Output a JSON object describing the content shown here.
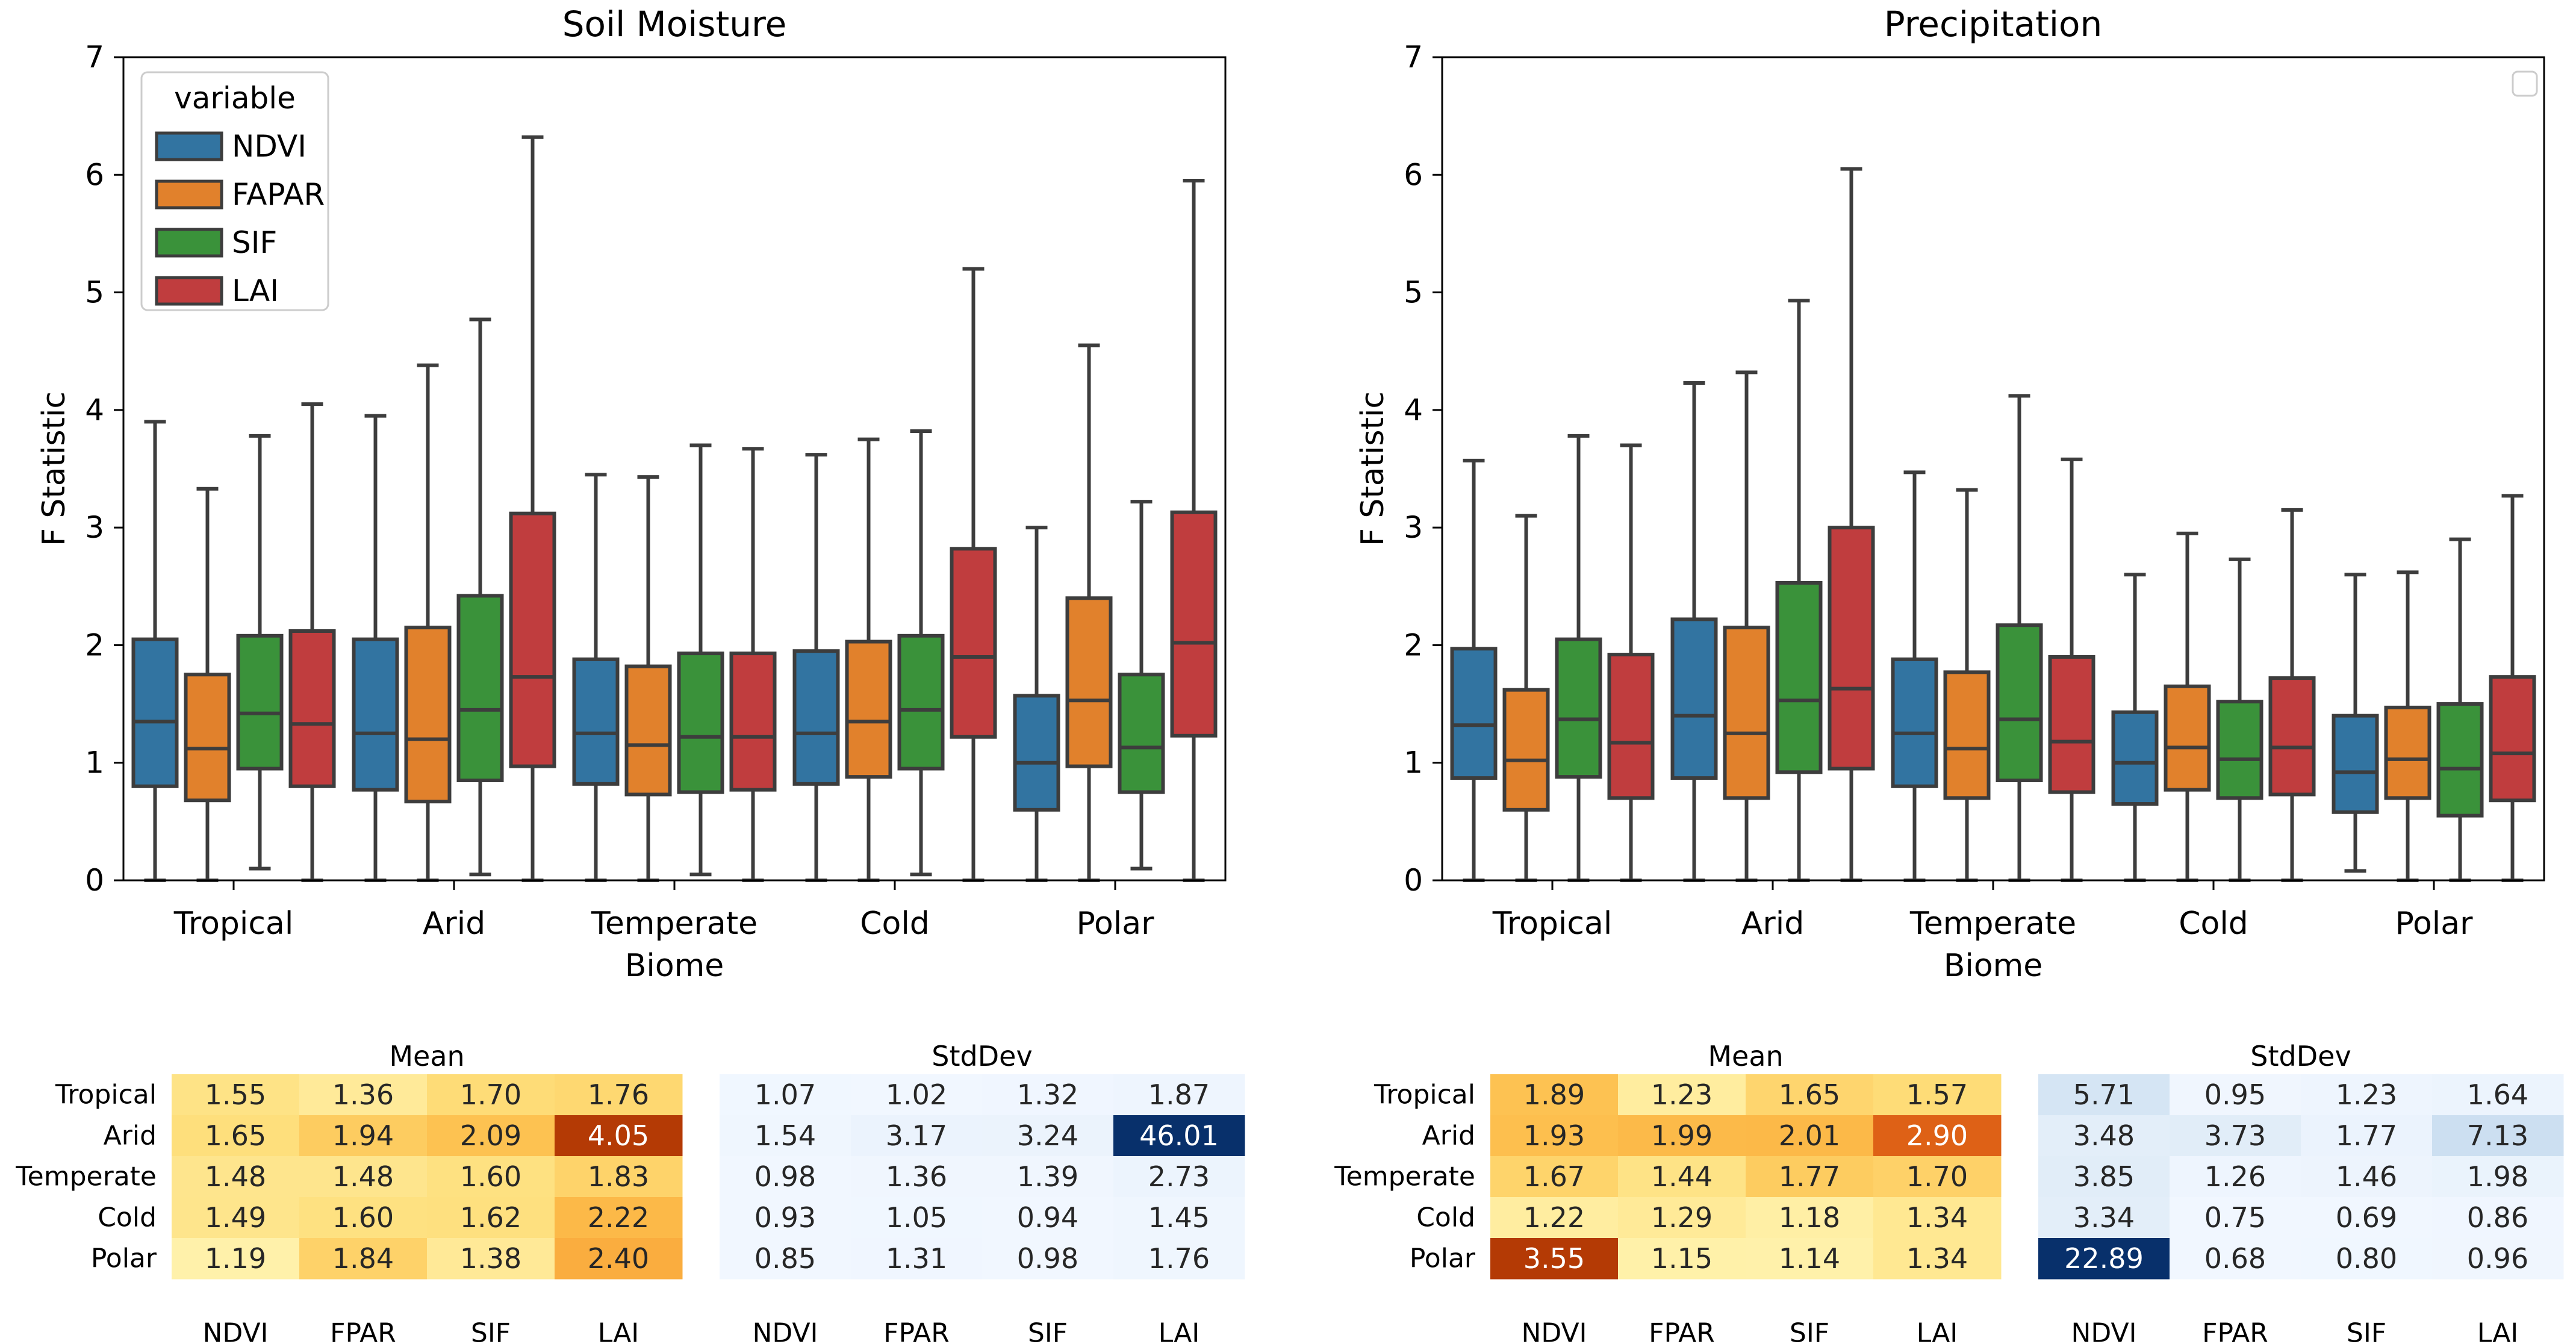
{
  "colors": {
    "NDVI": "#3274a1",
    "FAPAR": "#e1812c",
    "SIF": "#3a923a",
    "LAI": "#c03d3e",
    "line": "#3d3d3d"
  },
  "chart_data": [
    {
      "type": "box",
      "id": "soil",
      "title": "Soil Moisture",
      "xlabel": "Biome",
      "ylabel": "F Statistic",
      "ylim": [
        0,
        7
      ],
      "yticks": [
        "0",
        "1",
        "2",
        "3",
        "4",
        "5",
        "6",
        "7"
      ],
      "categories": [
        "Tropical",
        "Arid",
        "Temperate",
        "Cold",
        "Polar"
      ],
      "legend": {
        "title": "variable",
        "entries": [
          "NDVI",
          "FAPAR",
          "SIF",
          "LAI"
        ],
        "position": "upper-left"
      },
      "series": [
        {
          "name": "NDVI",
          "boxes": [
            {
              "min": 0,
              "q1": 0.8,
              "median": 1.35,
              "q3": 2.05,
              "max": 3.9
            },
            {
              "min": 0,
              "q1": 0.77,
              "median": 1.25,
              "q3": 2.05,
              "max": 3.95
            },
            {
              "min": 0,
              "q1": 0.82,
              "median": 1.25,
              "q3": 1.88,
              "max": 3.45
            },
            {
              "min": 0,
              "q1": 0.82,
              "median": 1.25,
              "q3": 1.95,
              "max": 3.62
            },
            {
              "min": 0,
              "q1": 0.6,
              "median": 1.0,
              "q3": 1.57,
              "max": 3.0
            }
          ]
        },
        {
          "name": "FAPAR",
          "boxes": [
            {
              "min": 0,
              "q1": 0.68,
              "median": 1.12,
              "q3": 1.75,
              "max": 3.33
            },
            {
              "min": 0,
              "q1": 0.67,
              "median": 1.2,
              "q3": 2.15,
              "max": 4.38
            },
            {
              "min": 0,
              "q1": 0.73,
              "median": 1.15,
              "q3": 1.82,
              "max": 3.43
            },
            {
              "min": 0,
              "q1": 0.88,
              "median": 1.35,
              "q3": 2.03,
              "max": 3.75
            },
            {
              "min": 0,
              "q1": 0.97,
              "median": 1.53,
              "q3": 2.4,
              "max": 4.55
            }
          ]
        },
        {
          "name": "SIF",
          "boxes": [
            {
              "min": 0.1,
              "q1": 0.95,
              "median": 1.42,
              "q3": 2.08,
              "max": 3.78
            },
            {
              "min": 0.05,
              "q1": 0.85,
              "median": 1.45,
              "q3": 2.42,
              "max": 4.77
            },
            {
              "min": 0.05,
              "q1": 0.75,
              "median": 1.22,
              "q3": 1.93,
              "max": 3.7
            },
            {
              "min": 0.05,
              "q1": 0.95,
              "median": 1.45,
              "q3": 2.08,
              "max": 3.82
            },
            {
              "min": 0.1,
              "q1": 0.75,
              "median": 1.13,
              "q3": 1.75,
              "max": 3.22
            }
          ]
        },
        {
          "name": "LAI",
          "boxes": [
            {
              "min": 0,
              "q1": 0.8,
              "median": 1.33,
              "q3": 2.12,
              "max": 4.05
            },
            {
              "min": 0,
              "q1": 0.97,
              "median": 1.73,
              "q3": 3.12,
              "max": 6.32
            },
            {
              "min": 0,
              "q1": 0.77,
              "median": 1.22,
              "q3": 1.93,
              "max": 3.67
            },
            {
              "min": 0,
              "q1": 1.22,
              "median": 1.9,
              "q3": 2.82,
              "max": 5.2
            },
            {
              "min": 0,
              "q1": 1.23,
              "median": 2.02,
              "q3": 3.13,
              "max": 5.95
            }
          ]
        }
      ]
    },
    {
      "type": "box",
      "id": "precip",
      "title": "Precipitation",
      "xlabel": "Biome",
      "ylabel": "F Statistic",
      "ylim": [
        0,
        7
      ],
      "yticks": [
        "0",
        "1",
        "2",
        "3",
        "4",
        "5",
        "6",
        "7"
      ],
      "categories": [
        "Tropical",
        "Arid",
        "Temperate",
        "Cold",
        "Polar"
      ],
      "legend": {
        "title": "",
        "entries": [],
        "position": "upper-right (empty)"
      },
      "series": [
        {
          "name": "NDVI",
          "boxes": [
            {
              "min": 0,
              "q1": 0.87,
              "median": 1.32,
              "q3": 1.97,
              "max": 3.57
            },
            {
              "min": 0,
              "q1": 0.87,
              "median": 1.4,
              "q3": 2.22,
              "max": 4.23
            },
            {
              "min": 0,
              "q1": 0.8,
              "median": 1.25,
              "q3": 1.88,
              "max": 3.47
            },
            {
              "min": 0,
              "q1": 0.65,
              "median": 1.0,
              "q3": 1.43,
              "max": 2.6
            },
            {
              "min": 0.08,
              "q1": 0.58,
              "median": 0.92,
              "q3": 1.4,
              "max": 2.6
            }
          ]
        },
        {
          "name": "FAPAR",
          "boxes": [
            {
              "min": 0,
              "q1": 0.6,
              "median": 1.02,
              "q3": 1.62,
              "max": 3.1
            },
            {
              "min": 0,
              "q1": 0.7,
              "median": 1.25,
              "q3": 2.15,
              "max": 4.32
            },
            {
              "min": 0,
              "q1": 0.7,
              "median": 1.12,
              "q3": 1.77,
              "max": 3.32
            },
            {
              "min": 0,
              "q1": 0.77,
              "median": 1.13,
              "q3": 1.65,
              "max": 2.95
            },
            {
              "min": 0,
              "q1": 0.7,
              "median": 1.03,
              "q3": 1.47,
              "max": 2.62
            }
          ]
        },
        {
          "name": "SIF",
          "boxes": [
            {
              "min": 0,
              "q1": 0.88,
              "median": 1.37,
              "q3": 2.05,
              "max": 3.78
            },
            {
              "min": 0,
              "q1": 0.92,
              "median": 1.53,
              "q3": 2.53,
              "max": 4.93
            },
            {
              "min": 0,
              "q1": 0.85,
              "median": 1.37,
              "q3": 2.17,
              "max": 4.12
            },
            {
              "min": 0,
              "q1": 0.7,
              "median": 1.03,
              "q3": 1.52,
              "max": 2.73
            },
            {
              "min": 0,
              "q1": 0.55,
              "median": 0.95,
              "q3": 1.5,
              "max": 2.9
            }
          ]
        },
        {
          "name": "LAI",
          "boxes": [
            {
              "min": 0,
              "q1": 0.7,
              "median": 1.17,
              "q3": 1.92,
              "max": 3.7
            },
            {
              "min": 0,
              "q1": 0.95,
              "median": 1.63,
              "q3": 3.0,
              "max": 6.05
            },
            {
              "min": 0,
              "q1": 0.75,
              "median": 1.18,
              "q3": 1.9,
              "max": 3.58
            },
            {
              "min": 0,
              "q1": 0.73,
              "median": 1.13,
              "q3": 1.72,
              "max": 3.15
            },
            {
              "min": 0,
              "q1": 0.68,
              "median": 1.08,
              "q3": 1.73,
              "max": 3.27
            }
          ]
        }
      ]
    },
    {
      "type": "heatmap",
      "id": "soil_mean",
      "title": "Mean",
      "palette": "orange",
      "rows": [
        "Tropical",
        "Arid",
        "Temperate",
        "Cold",
        "Polar"
      ],
      "cols": [
        "NDVI",
        "FPAR",
        "SIF",
        "LAI"
      ],
      "show_row_labels": true,
      "values": [
        [
          "1.55",
          "1.36",
          "1.70",
          "1.76"
        ],
        [
          "1.65",
          "1.94",
          "2.09",
          "4.05"
        ],
        [
          "1.48",
          "1.48",
          "1.60",
          "1.83"
        ],
        [
          "1.49",
          "1.60",
          "1.62",
          "2.22"
        ],
        [
          "1.19",
          "1.84",
          "1.38",
          "2.40"
        ]
      ]
    },
    {
      "type": "heatmap",
      "id": "soil_std",
      "title": "StdDev",
      "palette": "blue",
      "rows": [
        "Tropical",
        "Arid",
        "Temperate",
        "Cold",
        "Polar"
      ],
      "cols": [
        "NDVI",
        "FPAR",
        "SIF",
        "LAI"
      ],
      "show_row_labels": false,
      "values": [
        [
          "1.07",
          "1.02",
          "1.32",
          "1.87"
        ],
        [
          "1.54",
          "3.17",
          "3.24",
          "46.01"
        ],
        [
          "0.98",
          "1.36",
          "1.39",
          "2.73"
        ],
        [
          "0.93",
          "1.05",
          "0.94",
          "1.45"
        ],
        [
          "0.85",
          "1.31",
          "0.98",
          "1.76"
        ]
      ]
    },
    {
      "type": "heatmap",
      "id": "precip_mean",
      "title": "Mean",
      "palette": "orange",
      "rows": [
        "Tropical",
        "Arid",
        "Temperate",
        "Cold",
        "Polar"
      ],
      "cols": [
        "NDVI",
        "FPAR",
        "SIF",
        "LAI"
      ],
      "show_row_labels": true,
      "values": [
        [
          "1.89",
          "1.23",
          "1.65",
          "1.57"
        ],
        [
          "1.93",
          "1.99",
          "2.01",
          "2.90"
        ],
        [
          "1.67",
          "1.44",
          "1.77",
          "1.70"
        ],
        [
          "1.22",
          "1.29",
          "1.18",
          "1.34"
        ],
        [
          "3.55",
          "1.15",
          "1.14",
          "1.34"
        ]
      ]
    },
    {
      "type": "heatmap",
      "id": "precip_std",
      "title": "StdDev",
      "palette": "blue",
      "rows": [
        "Tropical",
        "Arid",
        "Temperate",
        "Cold",
        "Polar"
      ],
      "cols": [
        "NDVI",
        "FPAR",
        "SIF",
        "LAI"
      ],
      "show_row_labels": false,
      "values": [
        [
          "5.71",
          "0.95",
          "1.23",
          "1.64"
        ],
        [
          "3.48",
          "3.73",
          "1.77",
          "7.13"
        ],
        [
          "3.85",
          "1.26",
          "1.46",
          "1.98"
        ],
        [
          "3.34",
          "0.75",
          "0.69",
          "0.86"
        ],
        [
          "22.89",
          "0.68",
          "0.80",
          "0.96"
        ]
      ]
    }
  ]
}
